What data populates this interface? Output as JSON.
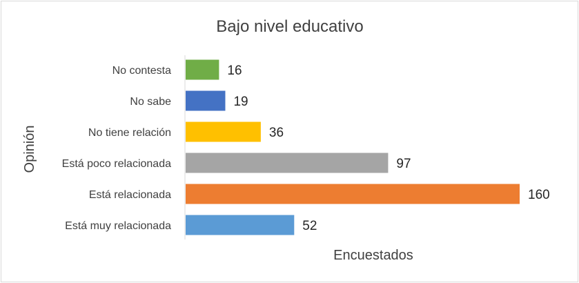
{
  "chart_data": {
    "type": "bar",
    "orientation": "horizontal",
    "title": "Bajo nivel educativo",
    "xlabel": "Encuestados",
    "ylabel": "Opinión",
    "categories": [
      "No contesta",
      "No sabe",
      "No tiene relación",
      "Está poco relacionada",
      "Está relacionada",
      "Está muy relacionada"
    ],
    "values": [
      16,
      19,
      36,
      97,
      160,
      52
    ],
    "value_labels": [
      "16",
      "19",
      "36",
      "97",
      "160",
      "52"
    ],
    "colors": [
      "#70ad47",
      "#4472c4",
      "#ffc000",
      "#a5a5a5",
      "#ed7d31",
      "#5b9bd5"
    ],
    "xlim": [
      0,
      160
    ],
    "grid": false,
    "legend": "none",
    "data_labels": true
  }
}
